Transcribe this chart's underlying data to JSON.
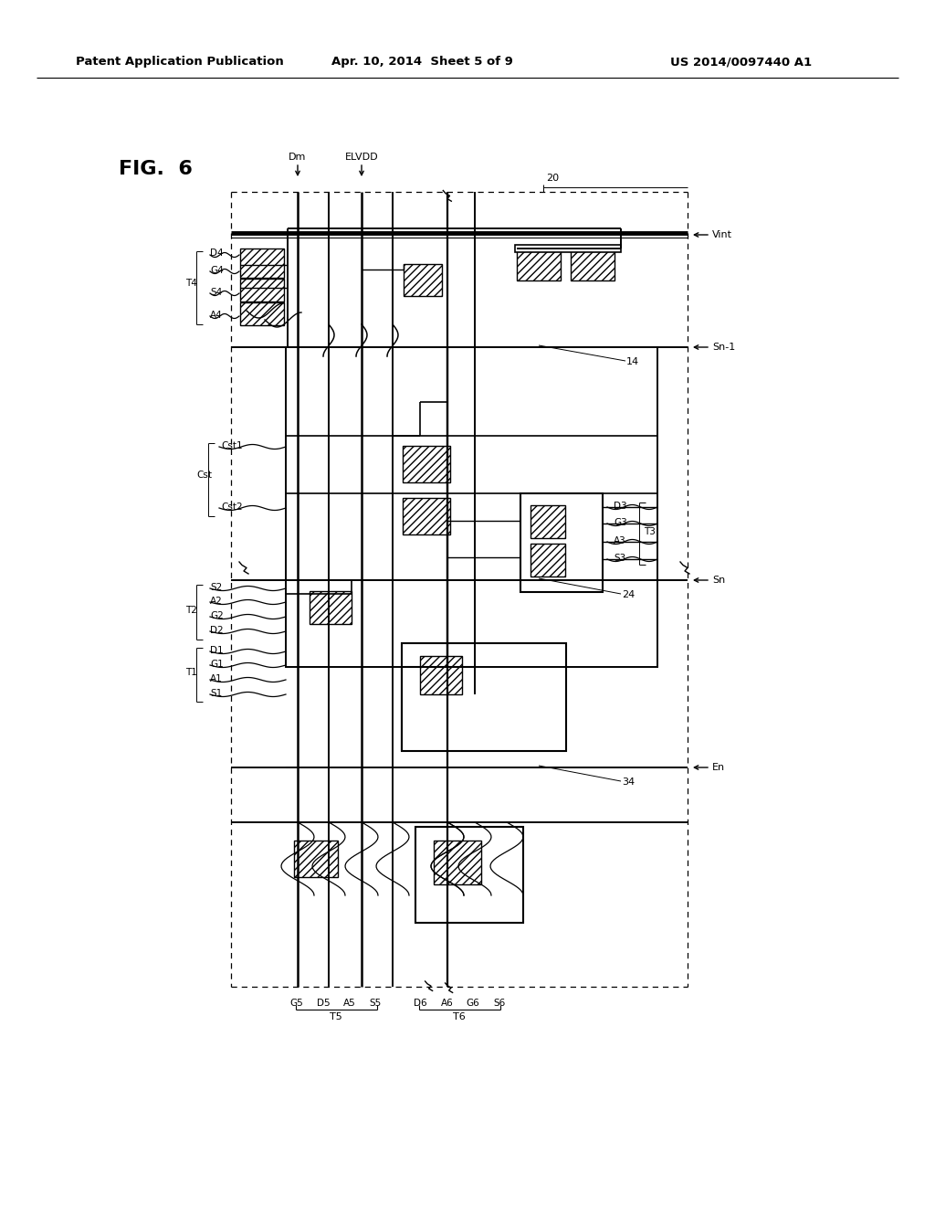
{
  "bg_color": "#ffffff",
  "header_left": "Patent Application Publication",
  "header_center": "Apr. 10, 2014  Sheet 5 of 9",
  "header_right": "US 2014/0097440 A1",
  "fig_label": "FIG.  6"
}
